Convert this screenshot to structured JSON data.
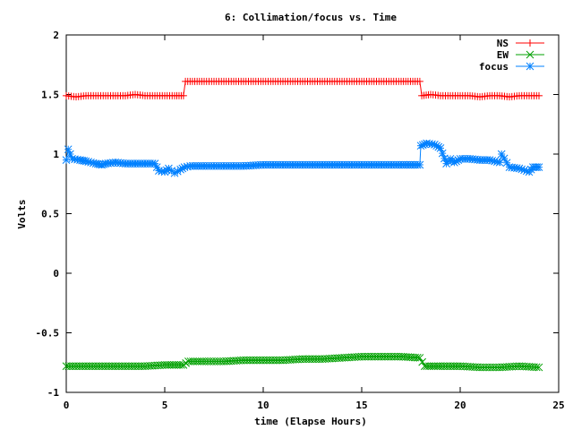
{
  "chart_data": {
    "type": "line",
    "title": "6: Collimation/focus vs. Time",
    "xlabel": "time (Elapse Hours)",
    "ylabel": "Volts",
    "xlim": [
      0,
      25
    ],
    "ylim": [
      -1,
      2
    ],
    "xticks": [
      "0",
      "5",
      "10",
      "15",
      "20",
      "25"
    ],
    "yticks": [
      "-1",
      "-0.5",
      "0",
      "0.5",
      "1",
      "1.5",
      "2"
    ],
    "grid": false,
    "legend_position": "top-right",
    "series": [
      {
        "name": "NS",
        "color": "#ff0000",
        "marker": "plus",
        "x": [
          0.0,
          0.5,
          1.0,
          1.5,
          2.0,
          2.5,
          3.0,
          3.5,
          4.0,
          4.5,
          5.0,
          5.5,
          5.95,
          6.05,
          7.0,
          8.0,
          9.0,
          10.0,
          11.0,
          12.0,
          13.0,
          14.0,
          15.0,
          16.0,
          17.0,
          17.95,
          18.05,
          18.5,
          19.0,
          19.5,
          20.0,
          20.5,
          21.0,
          21.5,
          22.0,
          22.5,
          23.0,
          23.5,
          24.0
        ],
        "y": [
          1.49,
          1.48,
          1.49,
          1.49,
          1.49,
          1.49,
          1.49,
          1.5,
          1.49,
          1.49,
          1.49,
          1.49,
          1.49,
          1.61,
          1.61,
          1.61,
          1.61,
          1.61,
          1.61,
          1.61,
          1.61,
          1.61,
          1.61,
          1.61,
          1.61,
          1.61,
          1.49,
          1.5,
          1.49,
          1.49,
          1.49,
          1.49,
          1.48,
          1.49,
          1.49,
          1.48,
          1.49,
          1.49,
          1.49
        ]
      },
      {
        "name": "EW",
        "color": "#00a000",
        "marker": "cross",
        "x": [
          0.0,
          1.0,
          2.0,
          3.0,
          4.0,
          5.0,
          5.95,
          6.2,
          7.0,
          8.0,
          9.0,
          10.0,
          11.0,
          12.0,
          13.0,
          14.0,
          15.0,
          16.0,
          17.0,
          17.95,
          18.2,
          19.0,
          20.0,
          21.0,
          22.0,
          23.0,
          24.0
        ],
        "y": [
          -0.78,
          -0.78,
          -0.78,
          -0.78,
          -0.78,
          -0.77,
          -0.77,
          -0.74,
          -0.74,
          -0.74,
          -0.73,
          -0.73,
          -0.73,
          -0.72,
          -0.72,
          -0.71,
          -0.7,
          -0.7,
          -0.7,
          -0.71,
          -0.78,
          -0.78,
          -0.78,
          -0.79,
          -0.79,
          -0.78,
          -0.79
        ]
      },
      {
        "name": "focus",
        "color": "#0080ff",
        "marker": "star",
        "x": [
          0.0,
          0.1,
          0.3,
          0.7,
          1.0,
          1.5,
          1.8,
          2.0,
          2.5,
          3.0,
          3.5,
          4.0,
          4.5,
          4.7,
          5.0,
          5.2,
          5.5,
          5.8,
          6.0,
          6.3,
          7.0,
          8.0,
          9.0,
          10.0,
          11.0,
          12.0,
          13.0,
          14.0,
          15.0,
          16.0,
          17.0,
          17.95,
          18.0,
          18.3,
          18.7,
          19.0,
          19.3,
          19.5,
          19.7,
          20.0,
          20.5,
          21.0,
          21.5,
          22.0,
          22.1,
          22.5,
          23.0,
          23.5,
          23.7,
          24.0
        ],
        "y": [
          0.95,
          1.04,
          0.96,
          0.95,
          0.94,
          0.92,
          0.91,
          0.92,
          0.93,
          0.92,
          0.92,
          0.92,
          0.92,
          0.86,
          0.85,
          0.88,
          0.84,
          0.87,
          0.89,
          0.9,
          0.9,
          0.9,
          0.9,
          0.91,
          0.91,
          0.91,
          0.91,
          0.91,
          0.91,
          0.91,
          0.91,
          0.91,
          1.07,
          1.09,
          1.08,
          1.05,
          0.92,
          0.96,
          0.93,
          0.96,
          0.96,
          0.95,
          0.95,
          0.93,
          1.0,
          0.89,
          0.88,
          0.85,
          0.89,
          0.89
        ]
      }
    ]
  }
}
